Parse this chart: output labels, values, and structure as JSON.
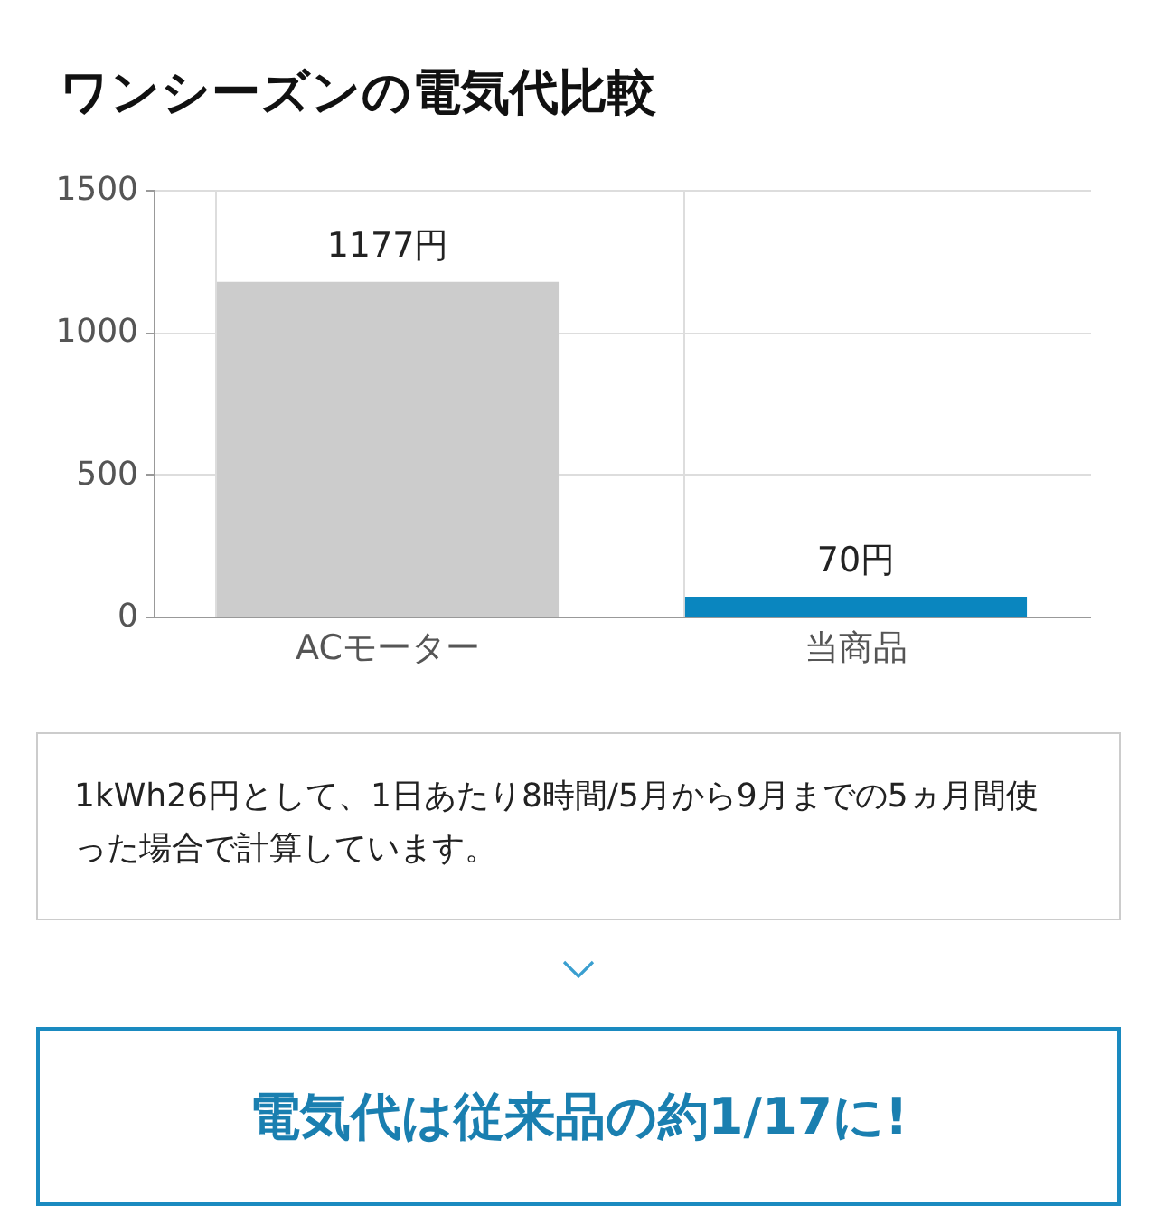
{
  "chart_data": {
    "type": "bar",
    "title": "ワンシーズンの電気代比較",
    "categories": [
      "ACモーター",
      "当商品"
    ],
    "values": [
      1177,
      70
    ],
    "colors": [
      "#cccccc",
      "#0a86bf"
    ],
    "value_labels": [
      "1177円",
      "70円"
    ],
    "ylim": [
      0,
      1500
    ],
    "yticks": [
      0,
      500,
      1000,
      1500
    ],
    "grid": true,
    "annotations": [
      "1kWh26円として、1日あたり8時間/5月から9月までの5ヵ月間使った場合で計算しています。",
      "電気代は従来品の約1/17に!"
    ]
  }
}
